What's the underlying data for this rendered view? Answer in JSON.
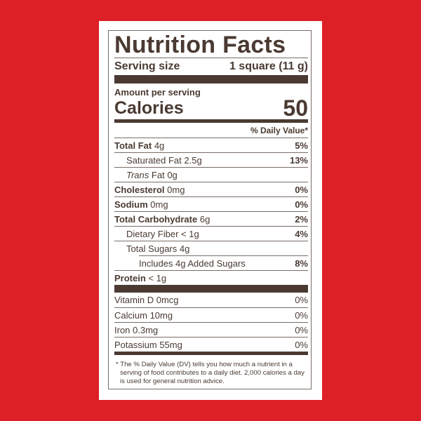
{
  "title": "Nutrition Facts",
  "serving": {
    "label": "Serving size",
    "value": "1 square (11 g)"
  },
  "amount_per_serving": "Amount per serving",
  "calories": {
    "label": "Calories",
    "value": "50"
  },
  "daily_value_header": "% Daily Value*",
  "nutrients": [
    {
      "name": "Total Fat",
      "amount": "4g",
      "dv": "5%"
    },
    {
      "name": "Saturated Fat",
      "amount": "2.5g",
      "dv": "13%"
    },
    {
      "name_italic": "Trans",
      "name": "Fat",
      "amount": "0g",
      "dv": ""
    },
    {
      "name": "Cholesterol",
      "amount": "0mg",
      "dv": "0%"
    },
    {
      "name": "Sodium",
      "amount": "0mg",
      "dv": "0%"
    },
    {
      "name": "Total Carbohydrate",
      "amount": "6g",
      "dv": "2%"
    },
    {
      "name": "Dietary Fiber",
      "amount": "< 1g",
      "dv": "4%"
    },
    {
      "name": "Total Sugars",
      "amount": "4g",
      "dv": ""
    },
    {
      "name": "Includes 4g Added Sugars",
      "amount": "",
      "dv": "8%"
    },
    {
      "name": "Protein",
      "amount": "< 1g",
      "dv": ""
    }
  ],
  "vitamins": [
    {
      "label": "Vitamin D 0mcg",
      "dv": "0%"
    },
    {
      "label": "Calcium 10mg",
      "dv": "0%"
    },
    {
      "label": "Iron 0.3mg",
      "dv": "0%"
    },
    {
      "label": "Potassium 55mg",
      "dv": "0%"
    }
  ],
  "footnote": "* The % Daily Value (DV) tells you how much a nutrient in a serving of food contributes to a daily diet. 2,000 calories a day is used for general nutrition advice.",
  "colors": {
    "background": "#dd1f26",
    "text": "#4a3a32"
  }
}
